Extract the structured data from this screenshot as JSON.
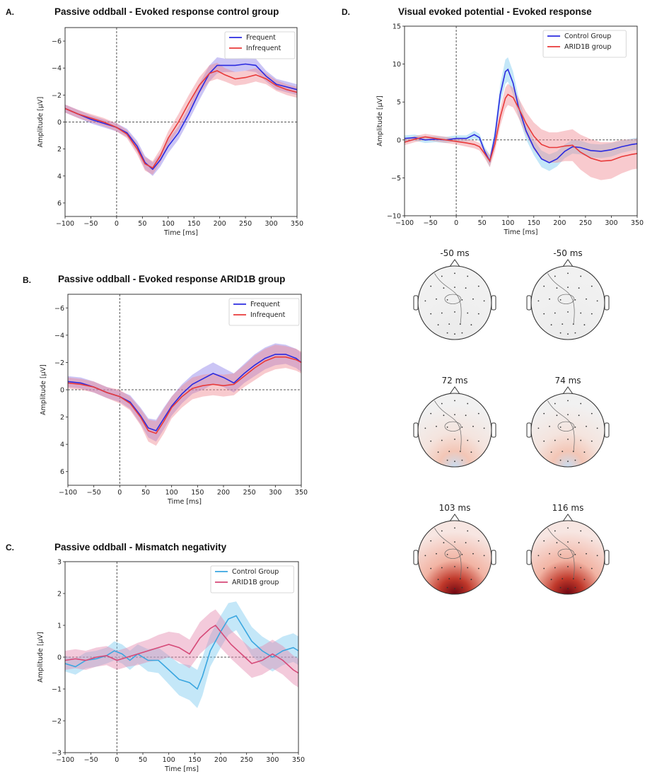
{
  "panels": {
    "A": {
      "letter": "A.",
      "title": "Passive oddball - Evoked response control group"
    },
    "B": {
      "letter": "B.",
      "title": "Passive oddball - Evoked response ARID1B group"
    },
    "C": {
      "letter": "C.",
      "title": "Passive oddball - Mismatch negativity"
    },
    "D": {
      "letter": "D.",
      "title": "Visual evoked potential - Evoked response"
    }
  },
  "colors": {
    "blue": "#2b2be0",
    "red": "#e83a3a",
    "lightblue": "#3aa6e0",
    "pink": "#d64a78",
    "blue_fill": "#8c7ee8",
    "red_fill": "#f08a92",
    "lightblue_fill": "#7ccaf0",
    "pink_fill": "#e48ab0"
  },
  "chart_data": [
    {
      "id": "A",
      "type": "line",
      "xlabel": "Time [ms]",
      "ylabel": "Amplitude [μV]",
      "xlim": [
        -100,
        350
      ],
      "ylim": [
        7,
        -7
      ],
      "y_inverted": true,
      "xticks": [
        -100,
        -50,
        0,
        50,
        100,
        150,
        200,
        250,
        300,
        350
      ],
      "xtick_labels": [
        "−100",
        "−50",
        "0",
        "50",
        "100",
        "150",
        "200",
        "250",
        "300",
        "350"
      ],
      "yticks": [
        -6,
        -4,
        -2,
        0,
        2,
        4,
        6
      ],
      "ytick_labels": [
        "−6",
        "−4",
        "−2",
        "0",
        "2",
        "4",
        "6"
      ],
      "legend_position": "top-right",
      "series": [
        {
          "name": "Frequent",
          "color": "blue",
          "fill": "blue_fill",
          "x": [
            -100,
            -75,
            -50,
            -25,
            0,
            20,
            40,
            55,
            70,
            85,
            100,
            120,
            140,
            160,
            180,
            195,
            210,
            230,
            250,
            270,
            290,
            310,
            330,
            350
          ],
          "y": [
            -1.0,
            -0.6,
            -0.2,
            0.1,
            0.4,
            0.8,
            1.8,
            3.0,
            3.5,
            2.8,
            1.8,
            0.8,
            -0.6,
            -2.2,
            -3.6,
            -4.2,
            -4.2,
            -4.2,
            -4.3,
            -4.2,
            -3.4,
            -2.8,
            -2.6,
            -2.4
          ],
          "err": [
            0.3,
            0.3,
            0.3,
            0.3,
            0.3,
            0.3,
            0.4,
            0.5,
            0.5,
            0.5,
            0.5,
            0.5,
            0.5,
            0.6,
            0.6,
            0.6,
            0.5,
            0.5,
            0.5,
            0.5,
            0.4,
            0.4,
            0.4,
            0.4
          ]
        },
        {
          "name": "Infrequent",
          "color": "red",
          "fill": "red_fill",
          "x": [
            -100,
            -75,
            -50,
            -25,
            0,
            20,
            40,
            55,
            70,
            85,
            100,
            120,
            140,
            160,
            180,
            195,
            210,
            230,
            250,
            270,
            290,
            310,
            330,
            350
          ],
          "y": [
            -1.0,
            -0.6,
            -0.3,
            0.0,
            0.4,
            0.9,
            2.0,
            3.1,
            3.4,
            2.5,
            1.2,
            0.0,
            -1.4,
            -2.7,
            -3.6,
            -3.8,
            -3.5,
            -3.2,
            -3.3,
            -3.5,
            -3.2,
            -2.7,
            -2.4,
            -2.2
          ],
          "err": [
            0.3,
            0.3,
            0.3,
            0.3,
            0.3,
            0.3,
            0.4,
            0.5,
            0.5,
            0.5,
            0.5,
            0.6,
            0.6,
            0.6,
            0.6,
            0.6,
            0.5,
            0.5,
            0.5,
            0.5,
            0.4,
            0.4,
            0.4,
            0.4
          ]
        }
      ]
    },
    {
      "id": "B",
      "type": "line",
      "xlabel": "Time [ms]",
      "ylabel": "Amplitude [μV]",
      "xlim": [
        -100,
        350
      ],
      "ylim": [
        7,
        -7
      ],
      "y_inverted": true,
      "xticks": [
        -100,
        -50,
        0,
        50,
        100,
        150,
        200,
        250,
        300,
        350
      ],
      "xtick_labels": [
        "−100",
        "−50",
        "0",
        "50",
        "100",
        "150",
        "200",
        "250",
        "300",
        "350"
      ],
      "yticks": [
        -6,
        -4,
        -2,
        0,
        2,
        4,
        6
      ],
      "ytick_labels": [
        "−6",
        "−4",
        "−2",
        "0",
        "2",
        "4",
        "6"
      ],
      "legend_position": "top-right",
      "series": [
        {
          "name": "Frequent",
          "color": "blue",
          "fill": "blue_fill",
          "x": [
            -100,
            -75,
            -50,
            -25,
            0,
            20,
            40,
            55,
            70,
            85,
            100,
            120,
            140,
            160,
            180,
            200,
            220,
            240,
            260,
            280,
            300,
            320,
            340,
            350
          ],
          "y": [
            -0.6,
            -0.5,
            -0.2,
            0.2,
            0.5,
            0.9,
            1.9,
            2.8,
            3.0,
            2.1,
            1.2,
            0.3,
            -0.4,
            -0.8,
            -1.2,
            -0.9,
            -0.5,
            -1.2,
            -1.8,
            -2.3,
            -2.6,
            -2.6,
            -2.3,
            -2.0
          ],
          "err": [
            0.4,
            0.4,
            0.4,
            0.4,
            0.4,
            0.5,
            0.6,
            0.7,
            0.8,
            0.8,
            0.7,
            0.7,
            0.7,
            0.8,
            0.8,
            0.7,
            0.7,
            0.7,
            0.8,
            0.8,
            0.8,
            0.7,
            0.7,
            0.7
          ]
        },
        {
          "name": "Infrequent",
          "color": "red",
          "fill": "red_fill",
          "x": [
            -100,
            -75,
            -50,
            -25,
            0,
            20,
            40,
            55,
            70,
            85,
            100,
            120,
            140,
            160,
            180,
            200,
            220,
            240,
            260,
            280,
            300,
            320,
            340,
            350
          ],
          "y": [
            -0.5,
            -0.4,
            -0.2,
            0.2,
            0.5,
            1.0,
            2.0,
            3.0,
            3.2,
            2.3,
            1.3,
            0.5,
            -0.1,
            -0.3,
            -0.4,
            -0.3,
            -0.4,
            -1.0,
            -1.6,
            -2.1,
            -2.4,
            -2.4,
            -2.2,
            -2.0
          ],
          "err": [
            0.4,
            0.4,
            0.4,
            0.4,
            0.5,
            0.5,
            0.6,
            0.8,
            0.9,
            0.9,
            0.8,
            0.8,
            0.8,
            0.8,
            0.8,
            0.8,
            0.8,
            0.8,
            0.9,
            0.9,
            0.9,
            0.8,
            0.8,
            0.8
          ]
        }
      ]
    },
    {
      "id": "C",
      "type": "line",
      "xlabel": "Time [ms]",
      "ylabel": "Amplitude [μV]",
      "xlim": [
        -100,
        350
      ],
      "ylim": [
        -3,
        3
      ],
      "y_inverted": false,
      "xticks": [
        -100,
        -50,
        0,
        50,
        100,
        150,
        200,
        250,
        300,
        350
      ],
      "xtick_labels": [
        "−100",
        "−50",
        "0",
        "50",
        "100",
        "150",
        "200",
        "250",
        "300",
        "350"
      ],
      "yticks": [
        -3,
        -2,
        -1,
        0,
        1,
        2,
        3
      ],
      "ytick_labels": [
        "−3",
        "−2",
        "−1",
        "0",
        "1",
        "2",
        "3"
      ],
      "legend_position": "top-right",
      "series": [
        {
          "name": "Control Group",
          "color": "lightblue",
          "fill": "lightblue_fill",
          "x": [
            -100,
            -80,
            -60,
            -40,
            -20,
            -5,
            10,
            25,
            40,
            60,
            80,
            100,
            120,
            140,
            155,
            165,
            180,
            200,
            215,
            230,
            245,
            260,
            280,
            300,
            320,
            340,
            350
          ],
          "y": [
            -0.2,
            -0.3,
            -0.1,
            -0.05,
            0.05,
            0.2,
            0.1,
            -0.1,
            0.1,
            -0.1,
            -0.1,
            -0.4,
            -0.7,
            -0.8,
            -1.0,
            -0.6,
            0.2,
            0.8,
            1.2,
            1.3,
            0.9,
            0.5,
            0.2,
            0.0,
            0.2,
            0.3,
            0.2
          ],
          "err": [
            0.25,
            0.25,
            0.25,
            0.25,
            0.25,
            0.3,
            0.3,
            0.3,
            0.3,
            0.35,
            0.4,
            0.45,
            0.5,
            0.55,
            0.6,
            0.6,
            0.5,
            0.5,
            0.5,
            0.45,
            0.45,
            0.45,
            0.45,
            0.45,
            0.45,
            0.45,
            0.45
          ]
        },
        {
          "name": "ARID1B group",
          "color": "pink",
          "fill": "pink_fill",
          "x": [
            -100,
            -80,
            -60,
            -40,
            -20,
            0,
            20,
            40,
            60,
            80,
            100,
            120,
            140,
            160,
            180,
            190,
            200,
            220,
            240,
            260,
            280,
            300,
            320,
            340,
            350
          ],
          "y": [
            -0.1,
            -0.05,
            -0.1,
            0.0,
            0.05,
            -0.1,
            0.0,
            0.1,
            0.2,
            0.3,
            0.4,
            0.3,
            0.1,
            0.6,
            0.9,
            1.0,
            0.8,
            0.4,
            0.1,
            -0.2,
            -0.1,
            0.1,
            -0.1,
            -0.4,
            -0.5
          ],
          "err": [
            0.3,
            0.3,
            0.3,
            0.3,
            0.3,
            0.3,
            0.3,
            0.35,
            0.35,
            0.4,
            0.4,
            0.45,
            0.45,
            0.5,
            0.5,
            0.5,
            0.5,
            0.45,
            0.45,
            0.45,
            0.45,
            0.45,
            0.45,
            0.45,
            0.45
          ]
        }
      ]
    },
    {
      "id": "D",
      "type": "line",
      "xlabel": "Time [ms]",
      "ylabel": "Amplitude [μV]",
      "xlim": [
        -100,
        350
      ],
      "ylim": [
        -10,
        15
      ],
      "y_inverted": false,
      "xticks": [
        -100,
        -50,
        0,
        50,
        100,
        150,
        200,
        250,
        300,
        350
      ],
      "xtick_labels": [
        "−100",
        "−50",
        "0",
        "50",
        "100",
        "150",
        "200",
        "250",
        "300",
        "350"
      ],
      "yticks": [
        -10,
        -5,
        0,
        5,
        10,
        15
      ],
      "ytick_labels": [
        "−10",
        "−5",
        "0",
        "5",
        "10",
        "15"
      ],
      "legend_position": "top-right",
      "series": [
        {
          "name": "Control Group",
          "color": "blue",
          "fill": "lightblue_fill",
          "x": [
            -100,
            -80,
            -60,
            -40,
            -20,
            0,
            20,
            35,
            45,
            55,
            65,
            75,
            85,
            95,
            100,
            110,
            120,
            135,
            150,
            165,
            180,
            195,
            210,
            225,
            240,
            260,
            280,
            300,
            320,
            340,
            350
          ],
          "y": [
            0.2,
            0.3,
            0.0,
            0.1,
            0.0,
            0.2,
            0.2,
            0.7,
            0.3,
            -1.5,
            -2.8,
            0.5,
            6.0,
            9.0,
            9.3,
            7.5,
            4.5,
            1.2,
            -1.0,
            -2.5,
            -3.0,
            -2.5,
            -1.5,
            -0.9,
            -1.0,
            -1.4,
            -1.5,
            -1.3,
            -0.9,
            -0.6,
            -0.5
          ],
          "err": [
            0.4,
            0.4,
            0.4,
            0.4,
            0.4,
            0.4,
            0.4,
            0.5,
            0.5,
            0.6,
            0.8,
            1.0,
            1.3,
            1.6,
            1.6,
            1.5,
            1.3,
            1.1,
            1.0,
            1.1,
            1.1,
            1.0,
            0.9,
            0.9,
            0.9,
            0.9,
            0.9,
            0.9,
            0.8,
            0.8,
            0.8
          ]
        },
        {
          "name": "ARID1B group",
          "color": "red",
          "fill": "red_fill",
          "x": [
            -100,
            -80,
            -60,
            -40,
            -20,
            0,
            20,
            35,
            45,
            55,
            65,
            75,
            85,
            95,
            100,
            110,
            120,
            135,
            150,
            165,
            180,
            195,
            210,
            225,
            240,
            260,
            280,
            300,
            320,
            340,
            350
          ],
          "y": [
            -0.3,
            0.1,
            0.4,
            0.2,
            0.0,
            -0.2,
            -0.4,
            -0.6,
            -0.9,
            -1.8,
            -2.8,
            -0.5,
            3.0,
            5.5,
            6.0,
            5.6,
            4.3,
            2.2,
            0.5,
            -0.6,
            -1.0,
            -1.0,
            -0.8,
            -0.7,
            -1.6,
            -2.4,
            -2.8,
            -2.7,
            -2.2,
            -1.9,
            -1.8
          ],
          "err": [
            0.4,
            0.4,
            0.4,
            0.4,
            0.4,
            0.4,
            0.5,
            0.5,
            0.5,
            0.6,
            0.8,
            1.0,
            1.2,
            1.4,
            1.4,
            1.3,
            1.3,
            1.5,
            1.8,
            2.0,
            2.0,
            2.0,
            2.0,
            2.1,
            2.3,
            2.5,
            2.5,
            2.4,
            2.2,
            2.0,
            2.0
          ]
        }
      ]
    }
  ],
  "topomaps": [
    {
      "label": "-50 ms",
      "intensity": 0.0,
      "col": 0,
      "row": 0
    },
    {
      "label": "-50 ms",
      "intensity": 0.0,
      "col": 1,
      "row": 0
    },
    {
      "label": "72 ms",
      "intensity": 0.25,
      "col": 0,
      "row": 1
    },
    {
      "label": "74 ms",
      "intensity": 0.2,
      "col": 1,
      "row": 1
    },
    {
      "label": "103 ms",
      "intensity": 1.0,
      "col": 0,
      "row": 2
    },
    {
      "label": "116 ms",
      "intensity": 0.8,
      "col": 1,
      "row": 2
    }
  ]
}
